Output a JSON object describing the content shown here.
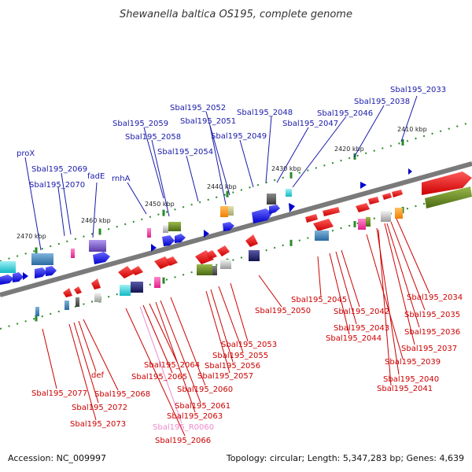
{
  "title": "Shewanella baltica OS195, complete genome",
  "footer": {
    "accession": "Accession: NC_009997",
    "summary": "Topology: circular; Length: 5,347,283 bp; Genes: 4,639"
  },
  "colors": {
    "top_label": "#1a1aaa",
    "bottom_label": "#cc0000",
    "rna_label": "#ee88cc",
    "backbone": "#7a7a7a",
    "tick": "#2a8a2a"
  },
  "ticks": [
    "2410 kbp",
    "2420 kbp",
    "2430 kbp",
    "2440 kbp",
    "2450 kbp",
    "2460 kbp",
    "2470 kbp"
  ],
  "top_labels": [
    "Sbal195_2033",
    "Sbal195_2038",
    "Sbal195_2046",
    "Sbal195_2047",
    "Sbal195_2048",
    "Sbal195_2052",
    "Sbal195_2051",
    "Sbal195_2049",
    "Sbal195_2059",
    "Sbal195_2058",
    "Sbal195_2054",
    "proX",
    "Sbal195_2069",
    "Sbal195_2070",
    "fadE",
    "rnhA"
  ],
  "bottom_labels": [
    "Sbal195_2034",
    "Sbal195_2035",
    "Sbal195_2036",
    "Sbal195_2037",
    "Sbal195_2039",
    "Sbal195_2040",
    "Sbal195_2041",
    "Sbal195_2042",
    "Sbal195_2043",
    "Sbal195_2044",
    "Sbal195_2045",
    "Sbal195_2050",
    "Sbal195_2053",
    "Sbal195_2055",
    "Sbal195_2056",
    "Sbal195_2057",
    "Sbal195_2060",
    "Sbal195_2061",
    "Sbal195_2063",
    "Sbal195_2064",
    "Sbal195_2065",
    "Sbal195_2066",
    "Sbal195_2068",
    "def",
    "Sbal195_2072",
    "Sbal195_2073",
    "Sbal195_2077"
  ],
  "rna_labels": [
    "Sbal195_R0060"
  ]
}
